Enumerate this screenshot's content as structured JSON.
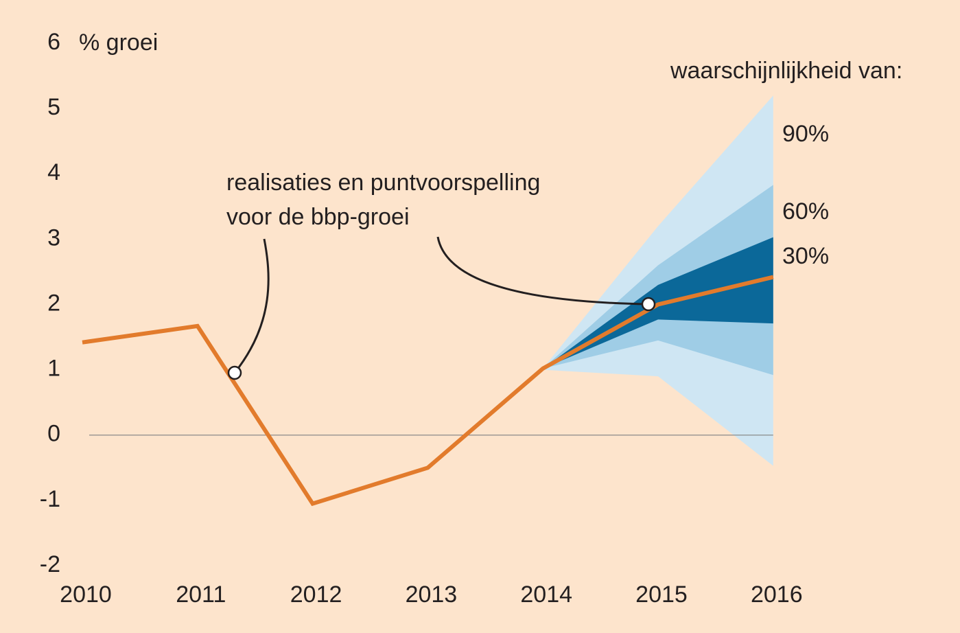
{
  "chart_data": {
    "type": "fan",
    "ylabel": "% groei",
    "categories": [
      "2010",
      "2011",
      "2012",
      "2013",
      "2014",
      "2015",
      "2016"
    ],
    "ylim": [
      -2,
      6
    ],
    "yticks": [
      -2,
      -1,
      0,
      1,
      2,
      3,
      4,
      5,
      6
    ],
    "series": [
      {
        "name": "realisaties en puntvoorspelling voor de bbp-groei",
        "color": "#e27b2c",
        "values": [
          1.42,
          1.67,
          -1.05,
          -0.5,
          1.02,
          2.0,
          2.42
        ]
      }
    ],
    "annotation": [
      "realisaties en puntvoorspelling",
      "voor de bbp-groei"
    ],
    "legend_title": "waarschijnlijkheid van:",
    "bands": [
      {
        "name": "90%",
        "color": "#cfe6f3",
        "upper": [
          null,
          null,
          null,
          null,
          1.02,
          3.2,
          5.2
        ],
        "lower": [
          null,
          null,
          null,
          null,
          1.0,
          0.9,
          -0.47
        ]
      },
      {
        "name": "60%",
        "color": "#9fcde6",
        "upper": [
          null,
          null,
          null,
          null,
          1.02,
          2.6,
          3.83
        ],
        "lower": [
          null,
          null,
          null,
          null,
          1.02,
          1.45,
          0.92
        ]
      },
      {
        "name": "30%",
        "color": "#0b6899",
        "upper": [
          null,
          null,
          null,
          null,
          1.02,
          2.3,
          3.03
        ],
        "lower": [
          null,
          null,
          null,
          null,
          1.02,
          1.77,
          1.71
        ]
      }
    ],
    "zero_line": true
  }
}
